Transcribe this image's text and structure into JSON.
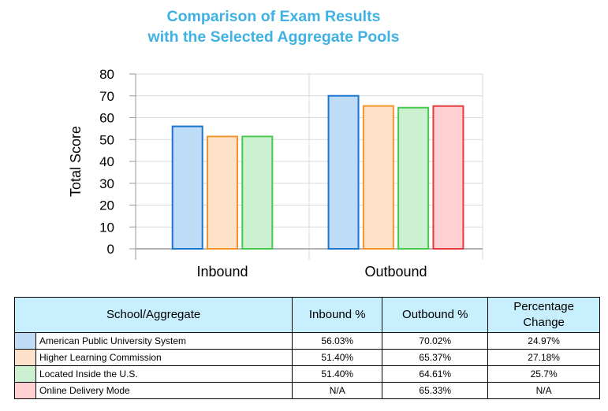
{
  "chart_data": {
    "type": "bar",
    "title": "Comparison of Exam Results with the Selected Aggregate Pools",
    "title_lines": [
      "Comparison of Exam Results",
      "with the Selected Aggregate Pools"
    ],
    "ylabel": "Total Score",
    "xlabel": "",
    "ylim": [
      0,
      80
    ],
    "yticks": [
      0,
      10,
      20,
      30,
      40,
      50,
      60,
      70,
      80
    ],
    "categories": [
      "Inbound",
      "Outbound"
    ],
    "series": [
      {
        "name": "American Public University System",
        "values": [
          56.03,
          70.02
        ],
        "fill": "#bfdcf6",
        "stroke": "#1a75cf"
      },
      {
        "name": "Higher Learning Commission",
        "values": [
          51.4,
          65.37
        ],
        "fill": "#fde1c8",
        "stroke": "#f5932b"
      },
      {
        "name": "Located Inside the U.S.",
        "values": [
          51.4,
          64.61
        ],
        "fill": "#cdf0d0",
        "stroke": "#45c94f"
      },
      {
        "name": "Online Delivery Mode",
        "values": [
          null,
          65.33
        ],
        "fill": "#ffd0d2",
        "stroke": "#e23b3f"
      }
    ],
    "grid": true
  },
  "table": {
    "headers": [
      "School/Aggregate",
      "Inbound %",
      "Outbound %",
      "Percentage Change"
    ],
    "rows": [
      {
        "name": "American Public University System",
        "inbound": "56.03%",
        "outbound": "70.02%",
        "change": "24.97%"
      },
      {
        "name": "Higher Learning Commission",
        "inbound": "51.40%",
        "outbound": "65.37%",
        "change": "27.18%"
      },
      {
        "name": "Located Inside the U.S.",
        "inbound": "51.40%",
        "outbound": "64.61%",
        "change": "25.7%"
      },
      {
        "name": "Online Delivery Mode",
        "inbound": "N/A",
        "outbound": "65.33%",
        "change": "N/A"
      }
    ]
  }
}
